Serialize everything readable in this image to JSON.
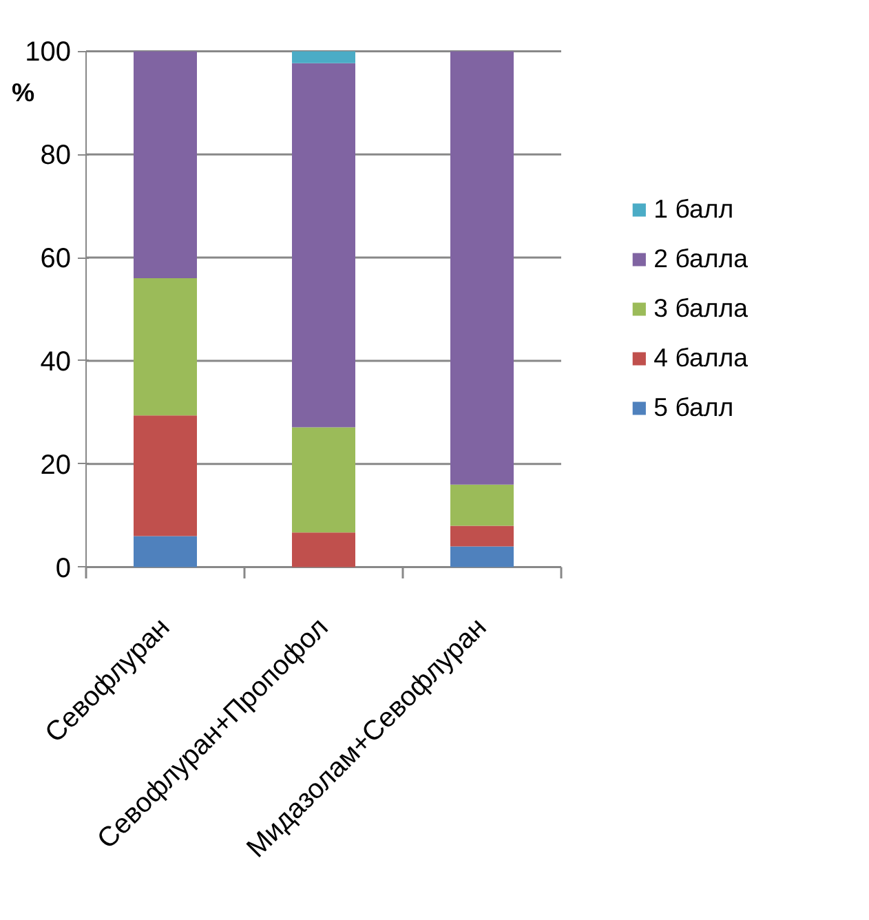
{
  "chart_data": {
    "type": "bar",
    "stacked": true,
    "ylabel": "%",
    "categories": [
      "Севофлуран",
      "Севофлуран+Пропофол",
      "Мидазолам+Севофлуран"
    ],
    "series": [
      {
        "name": "5 балл",
        "color": "#4f81bd",
        "values": [
          6.0,
          0,
          4.0
        ]
      },
      {
        "name": "4 балла",
        "color": "#c0504d",
        "values": [
          23.4,
          6.7,
          4.0
        ]
      },
      {
        "name": "3 балла",
        "color": "#9bbb59",
        "values": [
          26.6,
          20.4,
          8.0
        ]
      },
      {
        "name": "2 балла",
        "color": "#8064a2",
        "values": [
          44.0,
          70.6,
          84.0
        ]
      },
      {
        "name": "1 балл",
        "color": "#4bacc6",
        "values": [
          0,
          2.3,
          0
        ]
      }
    ],
    "ylim": [
      0,
      100
    ],
    "yticks": [
      0,
      20,
      40,
      60,
      80,
      100
    ],
    "grid": "y",
    "legend": "right"
  }
}
